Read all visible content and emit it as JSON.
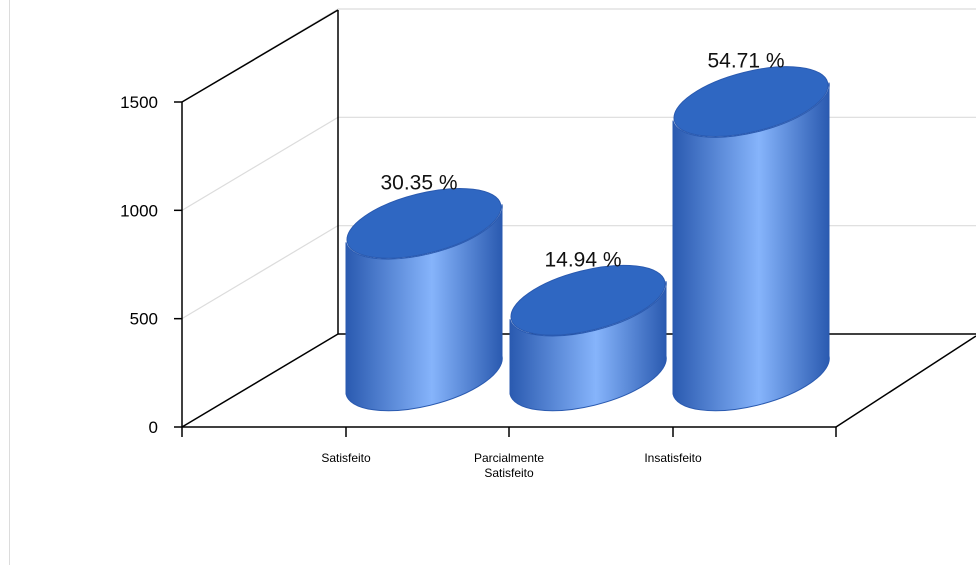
{
  "chart_data": {
    "type": "bar",
    "style": "3d-cylinder",
    "categories": [
      [
        "Satisfeito"
      ],
      [
        "Parcialmente",
        "Satisfeito"
      ],
      [
        "Insatisfeito"
      ]
    ],
    "values": [
      700,
      345,
      1262
    ],
    "data_labels": [
      "30.35 %",
      "14.94 %",
      "54.71 %"
    ],
    "yticks": [
      "0",
      "500",
      "1000",
      "1500"
    ],
    "ylim": [
      0,
      1500
    ],
    "grid": true,
    "legend": "none",
    "colors": {
      "bar": "#4a7fd6",
      "bar_dark": "#2a5ab0",
      "bar_light": "#86b4fb",
      "top": "#2f67c2",
      "axis": "#000000",
      "grid": "#dcdcdc"
    }
  }
}
